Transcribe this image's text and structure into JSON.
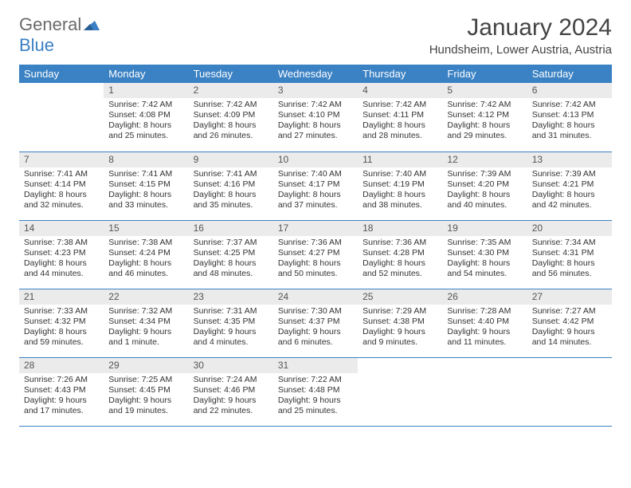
{
  "brand": {
    "general": "General",
    "blue": "Blue"
  },
  "title": "January 2024",
  "location": "Hundsheim, Lower Austria, Austria",
  "colors": {
    "header_bg": "#3b82c4",
    "header_text": "#ffffff",
    "daynum_bg": "#ebebeb",
    "row_border": "#3b82c4",
    "text": "#333333",
    "logo_gray": "#6a6a6a",
    "logo_blue": "#3b7fc4"
  },
  "weekdays": [
    "Sunday",
    "Monday",
    "Tuesday",
    "Wednesday",
    "Thursday",
    "Friday",
    "Saturday"
  ],
  "layout": {
    "first_day_column": 1,
    "days_in_month": 31,
    "rows": 5
  },
  "days": {
    "1": {
      "sunrise": "Sunrise: 7:42 AM",
      "sunset": "Sunset: 4:08 PM",
      "daylight": "Daylight: 8 hours and 25 minutes."
    },
    "2": {
      "sunrise": "Sunrise: 7:42 AM",
      "sunset": "Sunset: 4:09 PM",
      "daylight": "Daylight: 8 hours and 26 minutes."
    },
    "3": {
      "sunrise": "Sunrise: 7:42 AM",
      "sunset": "Sunset: 4:10 PM",
      "daylight": "Daylight: 8 hours and 27 minutes."
    },
    "4": {
      "sunrise": "Sunrise: 7:42 AM",
      "sunset": "Sunset: 4:11 PM",
      "daylight": "Daylight: 8 hours and 28 minutes."
    },
    "5": {
      "sunrise": "Sunrise: 7:42 AM",
      "sunset": "Sunset: 4:12 PM",
      "daylight": "Daylight: 8 hours and 29 minutes."
    },
    "6": {
      "sunrise": "Sunrise: 7:42 AM",
      "sunset": "Sunset: 4:13 PM",
      "daylight": "Daylight: 8 hours and 31 minutes."
    },
    "7": {
      "sunrise": "Sunrise: 7:41 AM",
      "sunset": "Sunset: 4:14 PM",
      "daylight": "Daylight: 8 hours and 32 minutes."
    },
    "8": {
      "sunrise": "Sunrise: 7:41 AM",
      "sunset": "Sunset: 4:15 PM",
      "daylight": "Daylight: 8 hours and 33 minutes."
    },
    "9": {
      "sunrise": "Sunrise: 7:41 AM",
      "sunset": "Sunset: 4:16 PM",
      "daylight": "Daylight: 8 hours and 35 minutes."
    },
    "10": {
      "sunrise": "Sunrise: 7:40 AM",
      "sunset": "Sunset: 4:17 PM",
      "daylight": "Daylight: 8 hours and 37 minutes."
    },
    "11": {
      "sunrise": "Sunrise: 7:40 AM",
      "sunset": "Sunset: 4:19 PM",
      "daylight": "Daylight: 8 hours and 38 minutes."
    },
    "12": {
      "sunrise": "Sunrise: 7:39 AM",
      "sunset": "Sunset: 4:20 PM",
      "daylight": "Daylight: 8 hours and 40 minutes."
    },
    "13": {
      "sunrise": "Sunrise: 7:39 AM",
      "sunset": "Sunset: 4:21 PM",
      "daylight": "Daylight: 8 hours and 42 minutes."
    },
    "14": {
      "sunrise": "Sunrise: 7:38 AM",
      "sunset": "Sunset: 4:23 PM",
      "daylight": "Daylight: 8 hours and 44 minutes."
    },
    "15": {
      "sunrise": "Sunrise: 7:38 AM",
      "sunset": "Sunset: 4:24 PM",
      "daylight": "Daylight: 8 hours and 46 minutes."
    },
    "16": {
      "sunrise": "Sunrise: 7:37 AM",
      "sunset": "Sunset: 4:25 PM",
      "daylight": "Daylight: 8 hours and 48 minutes."
    },
    "17": {
      "sunrise": "Sunrise: 7:36 AM",
      "sunset": "Sunset: 4:27 PM",
      "daylight": "Daylight: 8 hours and 50 minutes."
    },
    "18": {
      "sunrise": "Sunrise: 7:36 AM",
      "sunset": "Sunset: 4:28 PM",
      "daylight": "Daylight: 8 hours and 52 minutes."
    },
    "19": {
      "sunrise": "Sunrise: 7:35 AM",
      "sunset": "Sunset: 4:30 PM",
      "daylight": "Daylight: 8 hours and 54 minutes."
    },
    "20": {
      "sunrise": "Sunrise: 7:34 AM",
      "sunset": "Sunset: 4:31 PM",
      "daylight": "Daylight: 8 hours and 56 minutes."
    },
    "21": {
      "sunrise": "Sunrise: 7:33 AM",
      "sunset": "Sunset: 4:32 PM",
      "daylight": "Daylight: 8 hours and 59 minutes."
    },
    "22": {
      "sunrise": "Sunrise: 7:32 AM",
      "sunset": "Sunset: 4:34 PM",
      "daylight": "Daylight: 9 hours and 1 minute."
    },
    "23": {
      "sunrise": "Sunrise: 7:31 AM",
      "sunset": "Sunset: 4:35 PM",
      "daylight": "Daylight: 9 hours and 4 minutes."
    },
    "24": {
      "sunrise": "Sunrise: 7:30 AM",
      "sunset": "Sunset: 4:37 PM",
      "daylight": "Daylight: 9 hours and 6 minutes."
    },
    "25": {
      "sunrise": "Sunrise: 7:29 AM",
      "sunset": "Sunset: 4:38 PM",
      "daylight": "Daylight: 9 hours and 9 minutes."
    },
    "26": {
      "sunrise": "Sunrise: 7:28 AM",
      "sunset": "Sunset: 4:40 PM",
      "daylight": "Daylight: 9 hours and 11 minutes."
    },
    "27": {
      "sunrise": "Sunrise: 7:27 AM",
      "sunset": "Sunset: 4:42 PM",
      "daylight": "Daylight: 9 hours and 14 minutes."
    },
    "28": {
      "sunrise": "Sunrise: 7:26 AM",
      "sunset": "Sunset: 4:43 PM",
      "daylight": "Daylight: 9 hours and 17 minutes."
    },
    "29": {
      "sunrise": "Sunrise: 7:25 AM",
      "sunset": "Sunset: 4:45 PM",
      "daylight": "Daylight: 9 hours and 19 minutes."
    },
    "30": {
      "sunrise": "Sunrise: 7:24 AM",
      "sunset": "Sunset: 4:46 PM",
      "daylight": "Daylight: 9 hours and 22 minutes."
    },
    "31": {
      "sunrise": "Sunrise: 7:22 AM",
      "sunset": "Sunset: 4:48 PM",
      "daylight": "Daylight: 9 hours and 25 minutes."
    }
  }
}
